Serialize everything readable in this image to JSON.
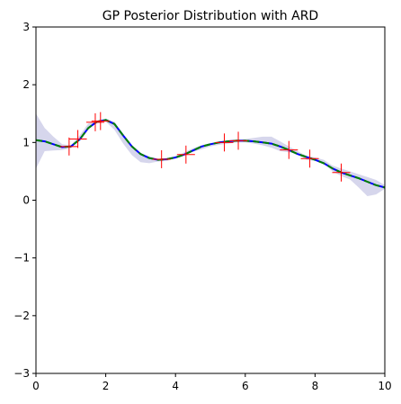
{
  "chart_data": {
    "type": "line",
    "title": "GP Posterior Distribution with ARD",
    "xlabel": "",
    "ylabel": "",
    "xlim": [
      0,
      10
    ],
    "ylim": [
      -3,
      3
    ],
    "x_ticks": [
      0,
      2,
      4,
      6,
      8,
      10
    ],
    "y_ticks": [
      -3,
      -2,
      -1,
      0,
      1,
      2,
      3
    ],
    "x_tick_labels": [
      "0",
      "2",
      "4",
      "6",
      "8",
      "10"
    ],
    "y_tick_labels": [
      "−3",
      "−2",
      "−1",
      "0",
      "1",
      "2",
      "3"
    ],
    "grid": false,
    "legend": "none",
    "colors": {
      "confidence_band": "#c8c8e6",
      "posterior_mean": "#0000ff",
      "true_function": "#008000",
      "observations": "#ff0000",
      "axes": "#000000"
    },
    "series": [
      {
        "kind": "band",
        "x": [
          0,
          0.25,
          0.5,
          0.75,
          1,
          1.25,
          1.5,
          1.75,
          2,
          2.25,
          2.5,
          2.75,
          3,
          3.25,
          3.5,
          3.75,
          4,
          4.25,
          4.5,
          4.75,
          5,
          5.25,
          5.5,
          5.75,
          6,
          6.25,
          6.5,
          6.75,
          7,
          7.25,
          7.5,
          7.75,
          8,
          8.25,
          8.5,
          8.75,
          9,
          9.25,
          9.5,
          9.75,
          10
        ],
        "lower": [
          0.55,
          0.85,
          0.86,
          0.87,
          0.9,
          1.04,
          1.27,
          1.33,
          1.36,
          1.22,
          0.98,
          0.78,
          0.66,
          0.64,
          0.67,
          0.68,
          0.72,
          0.78,
          0.84,
          0.88,
          0.93,
          0.96,
          0.98,
          1.0,
          1.0,
          0.98,
          0.95,
          0.91,
          0.85,
          0.83,
          0.8,
          0.7,
          0.68,
          0.64,
          0.5,
          0.42,
          0.36,
          0.22,
          0.07,
          0.1,
          0.2
        ],
        "upper": [
          1.5,
          1.25,
          1.1,
          0.97,
          0.95,
          1.12,
          1.33,
          1.37,
          1.41,
          1.36,
          1.15,
          0.95,
          0.8,
          0.76,
          0.72,
          0.72,
          0.76,
          0.83,
          0.9,
          0.95,
          0.99,
          1.01,
          1.03,
          1.05,
          1.06,
          1.08,
          1.1,
          1.1,
          1.02,
          0.93,
          0.85,
          0.77,
          0.74,
          0.7,
          0.6,
          0.55,
          0.5,
          0.45,
          0.4,
          0.35,
          0.26
        ]
      },
      {
        "kind": "line",
        "style": "solid",
        "x": [
          0,
          0.25,
          0.5,
          0.75,
          1,
          1.25,
          1.5,
          1.75,
          2,
          2.25,
          2.5,
          2.75,
          3,
          3.25,
          3.5,
          3.75,
          4,
          4.25,
          4.5,
          4.75,
          5,
          5.25,
          5.5,
          5.75,
          6,
          6.25,
          6.5,
          6.75,
          7,
          7.25,
          7.5,
          7.75,
          8,
          8.25,
          8.5,
          8.75,
          9,
          9.25,
          9.5,
          9.75,
          10
        ],
        "y": [
          1.04,
          1.02,
          0.97,
          0.92,
          0.93,
          1.05,
          1.25,
          1.36,
          1.39,
          1.32,
          1.12,
          0.93,
          0.8,
          0.73,
          0.7,
          0.71,
          0.74,
          0.79,
          0.86,
          0.93,
          0.97,
          1.0,
          1.02,
          1.03,
          1.03,
          1.02,
          1.0,
          0.98,
          0.93,
          0.87,
          0.8,
          0.75,
          0.7,
          0.64,
          0.55,
          0.48,
          0.43,
          0.38,
          0.32,
          0.26,
          0.22
        ]
      },
      {
        "kind": "line",
        "style": "dashed",
        "x": [
          0,
          0.25,
          0.5,
          0.75,
          1,
          1.25,
          1.5,
          1.75,
          2,
          2.25,
          2.5,
          2.75,
          3,
          3.25,
          3.5,
          3.75,
          4,
          4.25,
          4.5,
          4.75,
          5,
          5.25,
          5.5,
          5.75,
          6,
          6.25,
          6.5,
          6.75,
          7,
          7.25,
          7.5,
          7.75,
          8,
          8.25,
          8.5,
          8.75,
          9,
          9.25,
          9.5,
          9.75,
          10
        ],
        "y": [
          1.04,
          1.02,
          0.97,
          0.92,
          0.93,
          1.05,
          1.25,
          1.36,
          1.39,
          1.32,
          1.12,
          0.93,
          0.8,
          0.73,
          0.7,
          0.71,
          0.74,
          0.79,
          0.86,
          0.93,
          0.97,
          1.0,
          1.02,
          1.03,
          1.03,
          1.02,
          1.0,
          0.98,
          0.93,
          0.87,
          0.8,
          0.75,
          0.7,
          0.64,
          0.55,
          0.48,
          0.43,
          0.38,
          0.32,
          0.26,
          0.22
        ]
      },
      {
        "kind": "markers",
        "marker": "+",
        "x": [
          0.95,
          1.2,
          1.7,
          1.85,
          3.6,
          4.3,
          5.4,
          5.8,
          7.25,
          7.85,
          8.75
        ],
        "y": [
          0.93,
          1.06,
          1.35,
          1.37,
          0.71,
          0.79,
          1.0,
          1.03,
          0.87,
          0.72,
          0.48
        ]
      }
    ]
  }
}
